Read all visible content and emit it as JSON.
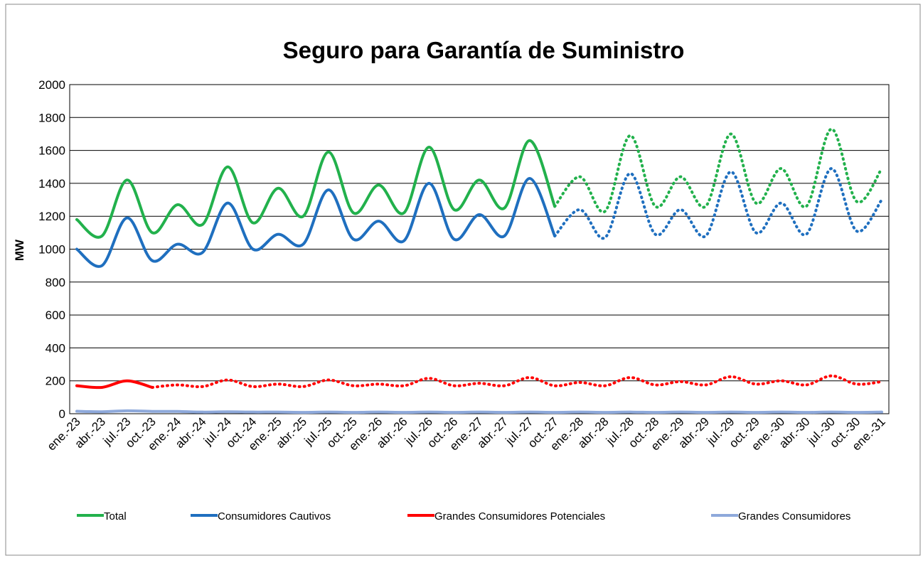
{
  "chart_data": {
    "type": "line",
    "title": "Seguro para Garantía de Suministro",
    "y_label": "MW",
    "categories": [
      "ene.-23",
      "abr.-23",
      "jul.-23",
      "oct.-23",
      "ene.-24",
      "abr.-24",
      "jul.-24",
      "oct.-24",
      "ene.-25",
      "abr.-25",
      "jul.-25",
      "oct.-25",
      "ene.-26",
      "abr.-26",
      "jul.-26",
      "oct.-26",
      "ene.-27",
      "abr.-27",
      "jul.-27",
      "oct.-27",
      "ene.-28",
      "abr.-28",
      "jul.-28",
      "oct.-28",
      "ene.-29",
      "abr.-29",
      "jul.-29",
      "oct.-29",
      "ene.-30",
      "abr.-30",
      "jul.-30",
      "oct.-30",
      "ene.-31"
    ],
    "ylim": [
      0,
      2000
    ],
    "yticks": [
      0,
      200,
      400,
      600,
      800,
      1000,
      1200,
      1400,
      1600,
      1800,
      2000
    ],
    "grid": true,
    "legend": "bottom",
    "series": [
      {
        "name": "Total",
        "color": "#22b14c",
        "projected_from": 19,
        "values": [
          1180,
          1080,
          1420,
          1100,
          1270,
          1150,
          1500,
          1160,
          1370,
          1200,
          1590,
          1220,
          1390,
          1220,
          1620,
          1240,
          1420,
          1250,
          1660,
          1260,
          1440,
          1230,
          1690,
          1260,
          1440,
          1260,
          1700,
          1280,
          1490,
          1260,
          1730,
          1290,
          1490
        ]
      },
      {
        "name": "Consumidores Cautivos",
        "color": "#1f6fbf",
        "projected_from": 19,
        "values": [
          1000,
          900,
          1190,
          930,
          1030,
          980,
          1280,
          1000,
          1090,
          1030,
          1360,
          1060,
          1170,
          1050,
          1400,
          1060,
          1210,
          1080,
          1430,
          1080,
          1240,
          1070,
          1460,
          1090,
          1240,
          1080,
          1470,
          1100,
          1280,
          1090,
          1490,
          1110,
          1300
        ]
      },
      {
        "name": "Grandes Consumidores Potenciales",
        "color": "#ff0000",
        "projected_from": 3,
        "values": [
          170,
          160,
          200,
          160,
          175,
          165,
          205,
          165,
          180,
          165,
          205,
          170,
          180,
          170,
          215,
          170,
          185,
          170,
          220,
          170,
          190,
          170,
          220,
          175,
          195,
          175,
          225,
          180,
          200,
          175,
          230,
          180,
          195
        ]
      },
      {
        "name": "Grandes Consumidores",
        "color": "#8ea9db",
        "values": [
          15,
          12,
          18,
          14,
          14,
          10,
          12,
          10,
          10,
          8,
          10,
          8,
          10,
          8,
          10,
          8,
          10,
          8,
          10,
          8,
          10,
          8,
          10,
          8,
          10,
          8,
          10,
          8,
          10,
          8,
          10,
          8,
          10
        ]
      }
    ]
  }
}
